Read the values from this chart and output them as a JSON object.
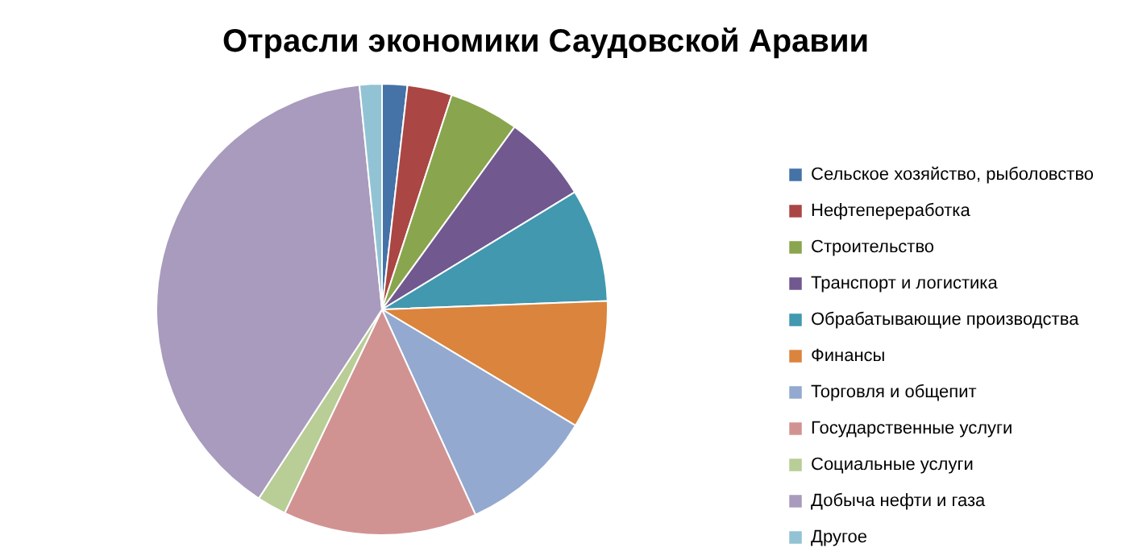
{
  "chart_data": {
    "type": "pie",
    "title": "Отрасли экономики Саудовской Аравии",
    "categories": [
      "Сельское хозяйство, рыболовство",
      "Нефтепереработка",
      "Строительство",
      "Транспорт и логистика",
      "Обрабатывающие производства",
      "Финансы",
      "Торговля и общепит",
      "Государственные услуги",
      "Социальные услуги",
      "Добыча нефти и газа",
      "Другое"
    ],
    "values": [
      1.8,
      3.2,
      5.0,
      6.3,
      8.1,
      9.2,
      9.6,
      13.9,
      2.1,
      39.2,
      1.6
    ],
    "colors": [
      "#4572a7",
      "#aa4643",
      "#89a54e",
      "#71588f",
      "#4198af",
      "#db843d",
      "#93a9cf",
      "#d19392",
      "#b9cd96",
      "#a99bbd",
      "#92c3d5"
    ],
    "legend": "right"
  }
}
